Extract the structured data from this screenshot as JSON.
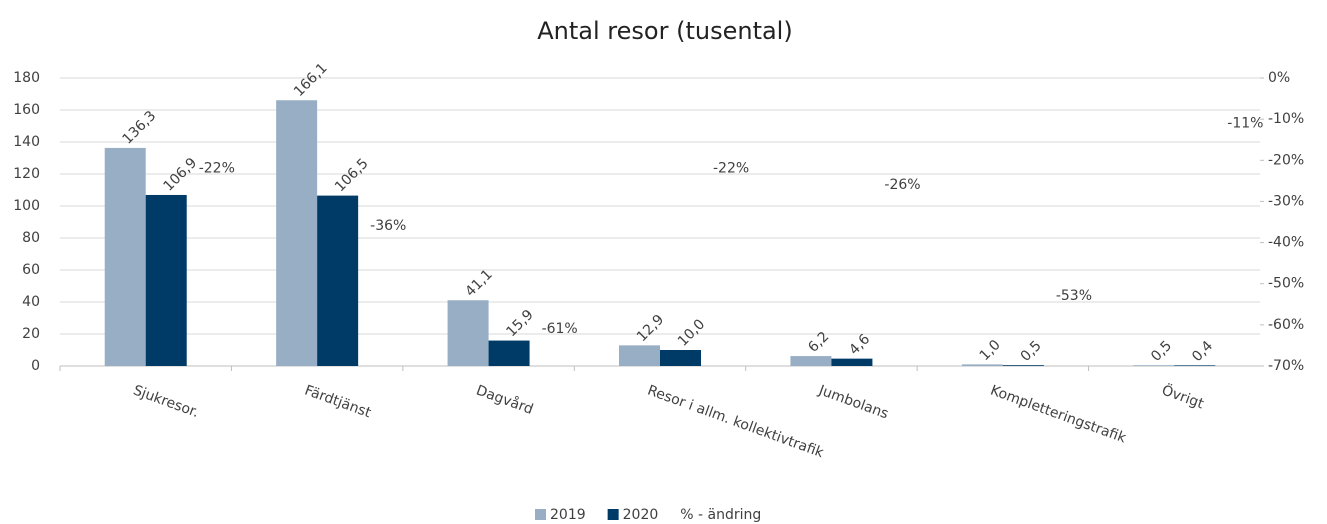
{
  "chart_data": {
    "type": "bar",
    "title": "Antal resor (tusental)",
    "categories": [
      "Sjukresor.",
      "Färdtjänst",
      "Dagvård",
      "Resor i allm. kollektivtrafik",
      "Jumbolans",
      "Kompletteringstrafik",
      "Övrigt"
    ],
    "series": [
      {
        "name": "2019",
        "color": "#97aec4",
        "values": [
          136.3,
          166.1,
          41.1,
          12.9,
          6.2,
          1.0,
          0.5
        ],
        "value_labels": [
          "136,3",
          "166,1",
          "41,1",
          "12,9",
          "6,2",
          "1,0",
          "0,5"
        ]
      },
      {
        "name": "2020",
        "color": "#003a66",
        "values": [
          106.9,
          106.5,
          15.9,
          10.0,
          4.6,
          0.5,
          0.4
        ],
        "value_labels": [
          "106,9",
          "106,5",
          "15,9",
          "10,0",
          "4,6",
          "0,5",
          "0,4"
        ]
      },
      {
        "name": "% - ändring",
        "axis": "y2",
        "values": [
          -22,
          -36,
          -61,
          -22,
          -26,
          -53,
          -11
        ],
        "value_labels": [
          "-22%",
          "-36%",
          "-61%",
          "-22%",
          "-26%",
          "-53%",
          "-11%"
        ]
      }
    ],
    "ylim": [
      0,
      180
    ],
    "yticks": [
      0,
      20,
      40,
      60,
      80,
      100,
      120,
      140,
      160,
      180
    ],
    "y2lim": [
      -70,
      0
    ],
    "y2ticks": [
      {
        "value": -70,
        "label": "-70%"
      },
      {
        "value": -60,
        "label": "-60%"
      },
      {
        "value": -50,
        "label": "-50%"
      },
      {
        "value": -40,
        "label": "-40%"
      },
      {
        "value": -30,
        "label": "-30%"
      },
      {
        "value": -20,
        "label": "-20%"
      },
      {
        "value": -10,
        "label": "-10%"
      },
      {
        "value": 0,
        "label": "0%"
      }
    ],
    "grid": true,
    "legend": "bottom"
  }
}
